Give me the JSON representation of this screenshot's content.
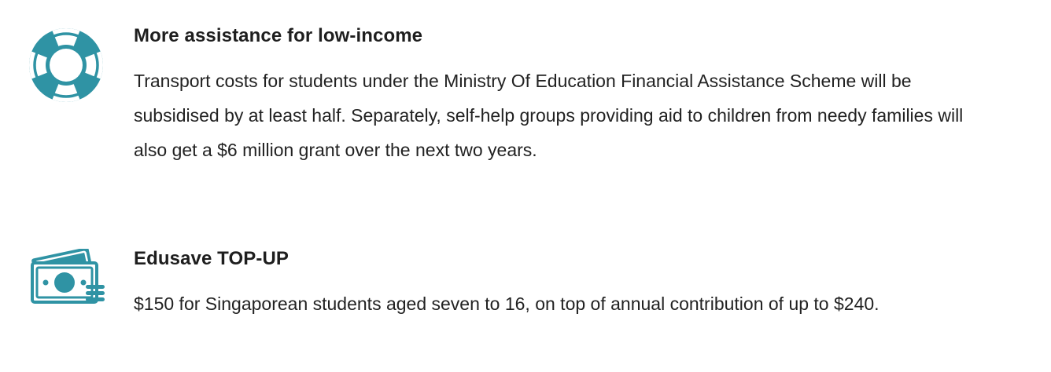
{
  "accent_color": "#2f93a4",
  "items": [
    {
      "icon": "lifebuoy-icon",
      "title": "More assistance for low-income",
      "body": "Transport costs for students under the Ministry Of Education Financial Assistance Scheme will be subsidised by at least half. Separately, self-help groups providing aid to children from needy families will also get a $6 million grant over the next two years."
    },
    {
      "icon": "money-stack-icon",
      "title": "Edusave TOP-UP",
      "body": "$150 for Singaporean students aged seven to 16, on top of annual contribution of up to $240."
    }
  ]
}
